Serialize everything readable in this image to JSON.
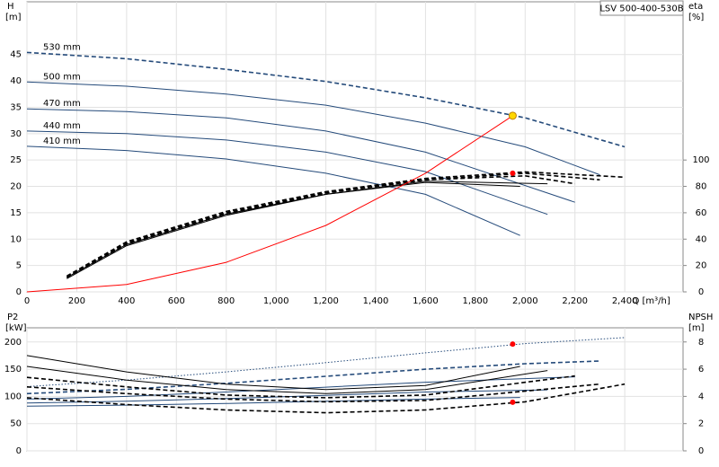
{
  "chart_data": [
    {
      "type": "line",
      "title": "LSV 500-400-530B",
      "xlabel": "Q [m³/h]",
      "ylabel": "H",
      "yunit": "[m]",
      "y2label": "eta",
      "y2unit": "[%]",
      "xlim": [
        0,
        2634
      ],
      "ylim": [
        0,
        55
      ],
      "y2lim": [
        0,
        220
      ],
      "grid": true,
      "xticks": [
        0,
        200,
        400,
        600,
        800,
        {
          "value": 1000,
          "label": "1,000"
        },
        {
          "value": 1200,
          "label": "1,200"
        },
        {
          "value": 1400,
          "label": "1,400"
        },
        {
          "value": 1600,
          "label": "1,600"
        },
        {
          "value": 1800,
          "label": "1,800"
        },
        {
          "value": 2000,
          "label": "2,000"
        },
        {
          "value": 2200,
          "label": "2,200"
        },
        {
          "value": 2400,
          "label": "2,400"
        }
      ],
      "yticks": [
        0,
        5,
        10,
        15,
        20,
        25,
        30,
        35,
        40,
        45
      ],
      "y2ticks": [
        0,
        20,
        40,
        60,
        80,
        100
      ],
      "series": [
        {
          "name": "530 mm",
          "color": "#244a7a",
          "dash": "dashed",
          "x": [
            0,
            400,
            800,
            1200,
            1600,
            2000,
            2400
          ],
          "values": [
            45.4,
            44.2,
            42.2,
            39.9,
            36.8,
            33.0,
            27.5
          ]
        },
        {
          "name": "500 mm",
          "color": "#244a7a",
          "dash": "solid",
          "x": [
            0,
            400,
            800,
            1200,
            1600,
            2000,
            2300
          ],
          "values": [
            39.8,
            39.0,
            37.5,
            35.4,
            32.0,
            27.5,
            22.2
          ]
        },
        {
          "name": "470 mm",
          "color": "#244a7a",
          "dash": "solid",
          "x": [
            0,
            400,
            800,
            1200,
            1600,
            2200
          ],
          "values": [
            34.7,
            34.2,
            33.0,
            30.5,
            26.5,
            17.0
          ]
        },
        {
          "name": "440 mm",
          "color": "#244a7a",
          "dash": "solid",
          "x": [
            0,
            400,
            800,
            1200,
            1600,
            2090
          ],
          "values": [
            30.5,
            30.0,
            28.8,
            26.5,
            22.8,
            14.7
          ]
        },
        {
          "name": "410 mm",
          "color": "#244a7a",
          "dash": "solid",
          "x": [
            0,
            400,
            800,
            1200,
            1600,
            1980
          ],
          "values": [
            27.6,
            26.8,
            25.2,
            22.5,
            18.5,
            10.7
          ]
        },
        {
          "axis": "y2",
          "color": "#000000",
          "dash": "dashed",
          "x": [
            160,
            400,
            800,
            1200,
            1600,
            2000,
            2400
          ],
          "values": [
            12,
            38,
            61,
            76,
            86,
            91,
            87
          ]
        },
        {
          "axis": "y2",
          "color": "#000000",
          "dash": "dashed",
          "x": [
            160,
            400,
            800,
            1200,
            1600,
            2000,
            2300
          ],
          "values": [
            12,
            37,
            60,
            75,
            85,
            90,
            85
          ]
        },
        {
          "axis": "y2",
          "color": "#000000",
          "dash": "dashed",
          "x": [
            160,
            400,
            800,
            1200,
            1600,
            2000,
            2200
          ],
          "values": [
            11,
            36,
            59,
            75,
            85,
            88,
            82
          ]
        },
        {
          "axis": "y2",
          "color": "#000000",
          "dash": "solid",
          "x": [
            160,
            400,
            800,
            1200,
            1600,
            2090
          ],
          "values": [
            11,
            36,
            59,
            74,
            84,
            82
          ]
        },
        {
          "axis": "y2",
          "color": "#000000",
          "dash": "solid",
          "x": [
            160,
            400,
            800,
            1200,
            1600,
            1980
          ],
          "values": [
            10,
            35,
            58,
            74,
            83,
            80
          ]
        },
        {
          "color": "#ff0000",
          "dash": "solid",
          "x": [
            0,
            400,
            800,
            1200,
            1600,
            1950
          ],
          "values": [
            0,
            1.4,
            5.6,
            12.6,
            22.5,
            33.4
          ]
        }
      ],
      "points": [
        {
          "x": 1950,
          "value": 33.4,
          "color": "#ffd700"
        },
        {
          "x": 1950,
          "value": 90,
          "axis": "y2",
          "color": "#ff0000"
        }
      ]
    },
    {
      "type": "line",
      "ylabel": "P2",
      "yunit": "[kW]",
      "y2label": "NPSH",
      "y2unit": "[m]",
      "xlim": [
        0,
        2634
      ],
      "ylim": [
        0,
        226
      ],
      "y2lim": [
        0,
        9.04
      ],
      "grid": true,
      "yticks": [
        0,
        50,
        100,
        150,
        200
      ],
      "y2ticks": [
        0,
        2,
        4,
        6,
        8
      ],
      "series": [
        {
          "color": "#244a7a",
          "dash": "dotted",
          "x": [
            0,
            400,
            800,
            1200,
            1600,
            2000,
            2400
          ],
          "values": [
            118,
            130,
            145,
            162,
            180,
            197,
            208
          ]
        },
        {
          "color": "#244a7a",
          "dash": "dashed",
          "x": [
            0,
            400,
            800,
            1200,
            1600,
            2000,
            2300
          ],
          "values": [
            105,
            113,
            124,
            137,
            150,
            160,
            165
          ]
        },
        {
          "color": "#244a7a",
          "dash": "solid",
          "x": [
            0,
            400,
            800,
            1200,
            1600,
            2200
          ],
          "values": [
            95,
            100,
            108,
            117,
            126,
            136
          ]
        },
        {
          "color": "#244a7a",
          "dash": "solid",
          "x": [
            0,
            400,
            800,
            1200,
            1600,
            2090
          ],
          "values": [
            88,
            91,
            96,
            102,
            108,
            112
          ]
        },
        {
          "color": "#244a7a",
          "dash": "solid",
          "x": [
            0,
            400,
            800,
            1200,
            1600,
            1980
          ],
          "values": [
            82,
            84,
            87,
            91,
            95,
            98
          ]
        },
        {
          "axis": "y2",
          "color": "#000000",
          "dash": "solid",
          "x": [
            0,
            400,
            800,
            1200,
            1600,
            1980
          ],
          "values": [
            7.0,
            5.8,
            4.9,
            4.5,
            4.8,
            6.2
          ]
        },
        {
          "axis": "y2",
          "color": "#000000",
          "dash": "solid",
          "x": [
            0,
            400,
            800,
            1200,
            1600,
            2090
          ],
          "values": [
            6.2,
            5.2,
            4.5,
            4.2,
            4.5,
            5.9
          ]
        },
        {
          "axis": "y2",
          "color": "#000000",
          "dash": "dashed",
          "x": [
            0,
            400,
            800,
            1200,
            1600,
            2200
          ],
          "values": [
            5.4,
            4.7,
            4.1,
            3.9,
            4.1,
            5.5
          ]
        },
        {
          "axis": "y2",
          "color": "#000000",
          "dash": "dashed",
          "x": [
            0,
            400,
            800,
            1200,
            1600,
            2300
          ],
          "values": [
            4.7,
            4.2,
            3.8,
            3.6,
            3.7,
            4.9
          ]
        },
        {
          "axis": "y2",
          "color": "#000000",
          "dash": "dashed",
          "x": [
            0,
            400,
            800,
            1200,
            1600,
            2000,
            2400
          ],
          "values": [
            3.9,
            3.4,
            3.0,
            2.8,
            3.0,
            3.6,
            4.9
          ]
        }
      ],
      "points": [
        {
          "x": 1950,
          "value": 196,
          "color": "#ff0000"
        },
        {
          "x": 1950,
          "value": 3.57,
          "axis": "y2",
          "color": "#ff0000"
        }
      ]
    }
  ]
}
